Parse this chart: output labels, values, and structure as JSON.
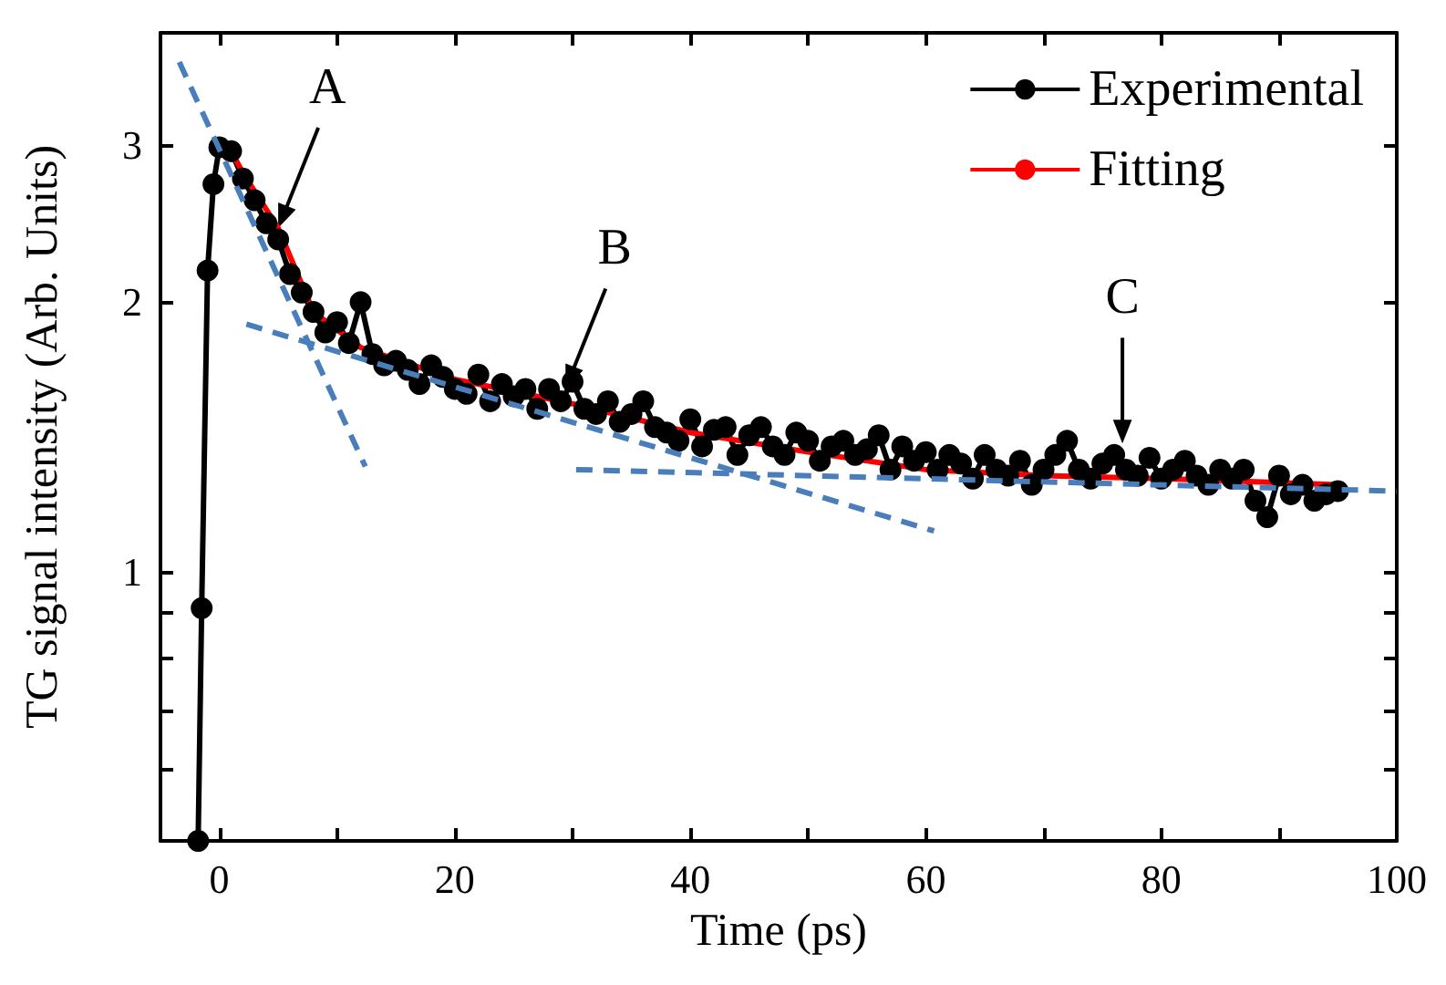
{
  "chart_data": {
    "type": "line",
    "xlabel": "Time (ps)",
    "ylabel": "TG signal intensity (Arb. Units)",
    "log": "y",
    "grid": false,
    "legend": "top right",
    "xlim": [
      -5,
      100
    ],
    "xticks": [
      0,
      {
        "value": 10,
        "label": null
      },
      20,
      {
        "value": 30,
        "label": null
      },
      40,
      {
        "value": 50,
        "label": null
      },
      60,
      {
        "value": 70,
        "label": null
      },
      80,
      {
        "value": 90,
        "label": null
      },
      100
    ],
    "ylim": [
      0.5,
      4
    ],
    "yticks": [
      {
        "value": 0.6,
        "label": null
      },
      {
        "value": 0.7,
        "label": null
      },
      {
        "value": 0.8,
        "label": null
      },
      {
        "value": 0.9,
        "label": null
      },
      1,
      2,
      3
    ],
    "series": [
      {
        "name": "Experimental",
        "color": "#000000",
        "marker": "circle",
        "x": [
          -1.8,
          -1.5,
          -1,
          -0.5,
          0,
          1,
          2,
          3,
          4,
          5,
          6,
          7,
          8,
          9,
          10,
          11,
          12,
          13,
          14,
          15,
          16,
          17,
          18,
          19,
          20,
          21,
          22,
          23,
          24,
          25,
          26,
          27,
          28,
          29,
          30,
          31,
          32,
          33,
          34,
          35,
          36,
          37,
          38,
          39,
          40,
          41,
          42,
          43,
          44,
          45,
          46,
          47,
          48,
          49,
          50,
          51,
          52,
          53,
          54,
          55,
          56,
          57,
          58,
          59,
          60,
          61,
          62,
          63,
          64,
          65,
          66,
          67,
          68,
          69,
          70,
          71,
          72,
          73,
          74,
          75,
          76,
          77,
          78,
          79,
          80,
          81,
          82,
          83,
          84,
          85,
          86,
          87,
          88,
          89,
          90,
          91,
          92,
          93,
          94,
          95
        ],
        "values": [
          0.5,
          0.91,
          2.17,
          2.71,
          2.98,
          2.95,
          2.75,
          2.6,
          2.45,
          2.35,
          2.15,
          2.05,
          1.95,
          1.85,
          1.9,
          1.8,
          2.0,
          1.75,
          1.7,
          1.72,
          1.68,
          1.62,
          1.7,
          1.65,
          1.6,
          1.58,
          1.66,
          1.55,
          1.62,
          1.57,
          1.6,
          1.52,
          1.6,
          1.55,
          1.63,
          1.52,
          1.5,
          1.55,
          1.47,
          1.5,
          1.55,
          1.45,
          1.43,
          1.4,
          1.48,
          1.38,
          1.44,
          1.45,
          1.35,
          1.42,
          1.45,
          1.38,
          1.35,
          1.43,
          1.4,
          1.33,
          1.38,
          1.4,
          1.35,
          1.37,
          1.42,
          1.3,
          1.38,
          1.33,
          1.36,
          1.3,
          1.35,
          1.32,
          1.27,
          1.35,
          1.3,
          1.28,
          1.33,
          1.25,
          1.3,
          1.35,
          1.4,
          1.3,
          1.27,
          1.32,
          1.35,
          1.3,
          1.28,
          1.34,
          1.27,
          1.3,
          1.33,
          1.28,
          1.25,
          1.3,
          1.27,
          1.3,
          1.2,
          1.15,
          1.28,
          1.22,
          1.25,
          1.2,
          1.22,
          1.23
        ]
      },
      {
        "name": "Fitting",
        "color": "#ff0000",
        "marker": "none",
        "x": [
          1,
          2,
          5,
          8,
          12,
          20,
          30,
          40,
          50,
          60,
          70,
          80,
          88,
          95
        ],
        "values": [
          2.95,
          2.79,
          2.42,
          1.95,
          1.78,
          1.64,
          1.54,
          1.43,
          1.36,
          1.3,
          1.28,
          1.27,
          1.26,
          1.25
        ]
      },
      {
        "color": "#4a7ebb",
        "marker": "none",
        "line_style": "dashed",
        "x": [
          -3.4,
          12.4
        ],
        "values": [
          3.71,
          1.31
        ]
      },
      {
        "color": "#4a7ebb",
        "marker": "none",
        "line_style": "dashed",
        "x": [
          2.3,
          60.7
        ],
        "values": [
          1.89,
          1.11
        ]
      },
      {
        "color": "#4a7ebb",
        "marker": "none",
        "line_style": "dashed",
        "x": [
          30.3,
          100
        ],
        "values": [
          1.3,
          1.23
        ]
      }
    ],
    "annotations": [
      {
        "text": "A",
        "x": 5,
        "y": 2.42
      },
      {
        "text": "B",
        "x": 29.4,
        "y": 1.6
      },
      {
        "text": "C",
        "x": 76.7,
        "y": 1.39
      }
    ]
  }
}
